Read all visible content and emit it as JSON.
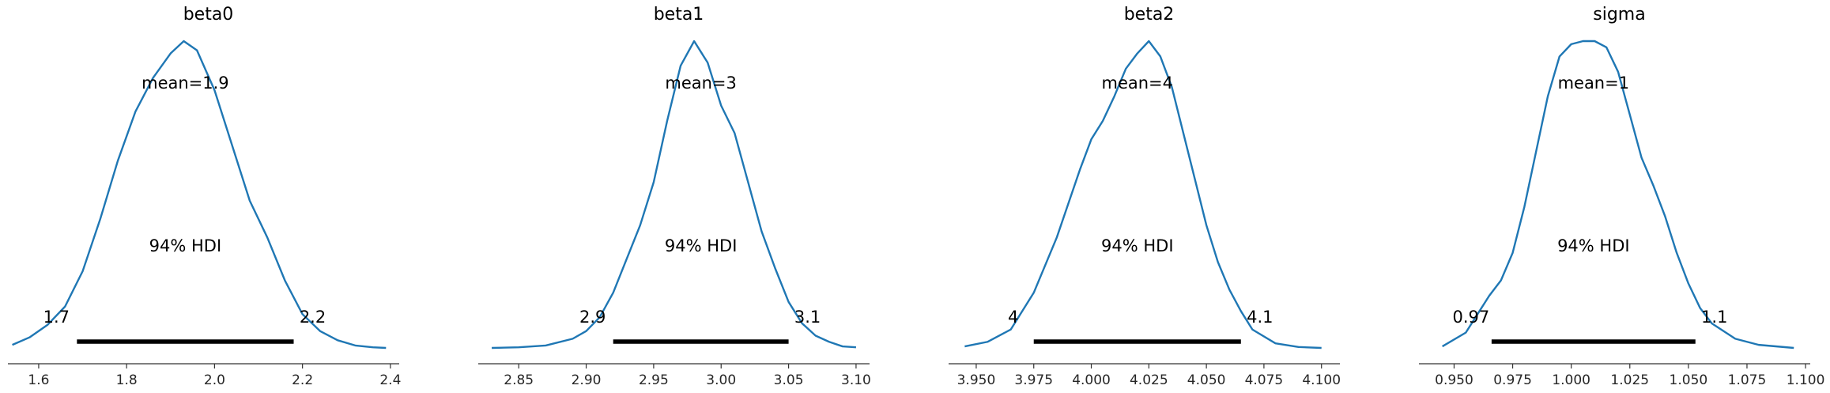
{
  "figure": {
    "hdi_label": "94% HDI",
    "colors": {
      "density": "#1f77b4",
      "hdi": "#000000"
    }
  },
  "chart_data": [
    {
      "type": "line",
      "title": "beta0",
      "mean_label": "mean=1.9",
      "hdi_low_label": "1.7",
      "hdi_high_label": "2.2",
      "hdi": [
        1.687,
        2.18
      ],
      "xlim": [
        1.53,
        2.42
      ],
      "ylim": [
        0,
        1
      ],
      "xticks": [
        1.6,
        1.8,
        2.0,
        2.2,
        2.4
      ],
      "xtick_labels": [
        "1.6",
        "1.8",
        "2.0",
        "2.2",
        "2.4"
      ],
      "x": [
        1.54,
        1.58,
        1.62,
        1.66,
        1.7,
        1.74,
        1.78,
        1.82,
        1.86,
        1.9,
        1.93,
        1.96,
        2.0,
        2.04,
        2.08,
        2.12,
        2.16,
        2.2,
        2.24,
        2.28,
        2.32,
        2.36,
        2.39
      ],
      "y": [
        0.01,
        0.035,
        0.075,
        0.135,
        0.25,
        0.42,
        0.61,
        0.77,
        0.88,
        0.96,
        1.0,
        0.97,
        0.84,
        0.66,
        0.48,
        0.36,
        0.22,
        0.11,
        0.055,
        0.025,
        0.008,
        0.002,
        0.0
      ]
    },
    {
      "type": "line",
      "title": "beta1",
      "mean_label": "mean=3",
      "hdi_low_label": "2.9",
      "hdi_high_label": "3.1",
      "hdi": [
        2.92,
        3.05
      ],
      "xlim": [
        2.82,
        3.11
      ],
      "ylim": [
        0,
        1
      ],
      "xticks": [
        2.85,
        2.9,
        2.95,
        3.0,
        3.05,
        3.1
      ],
      "xtick_labels": [
        "2.85",
        "2.90",
        "2.95",
        "3.00",
        "3.05",
        "3.10"
      ],
      "x": [
        2.83,
        2.85,
        2.87,
        2.89,
        2.9,
        2.91,
        2.92,
        2.93,
        2.94,
        2.95,
        2.96,
        2.97,
        2.98,
        2.99,
        3.0,
        3.01,
        3.02,
        3.03,
        3.04,
        3.05,
        3.06,
        3.07,
        3.08,
        3.09,
        3.1
      ],
      "y": [
        0.0,
        0.002,
        0.008,
        0.03,
        0.055,
        0.1,
        0.18,
        0.29,
        0.4,
        0.54,
        0.74,
        0.92,
        1.0,
        0.93,
        0.79,
        0.7,
        0.54,
        0.38,
        0.26,
        0.15,
        0.08,
        0.04,
        0.02,
        0.005,
        0.002
      ]
    },
    {
      "type": "line",
      "title": "beta2",
      "mean_label": "mean=4",
      "hdi_low_label": "4",
      "hdi_high_label": "4.1",
      "hdi": [
        3.975,
        4.065
      ],
      "xlim": [
        3.938,
        4.108
      ],
      "ylim": [
        0,
        1
      ],
      "xticks": [
        3.95,
        3.975,
        4.0,
        4.025,
        4.05,
        4.075,
        4.1
      ],
      "xtick_labels": [
        "3.950",
        "3.975",
        "4.000",
        "4.025",
        "4.050",
        "4.075",
        "4.100"
      ],
      "x": [
        3.945,
        3.955,
        3.965,
        3.975,
        3.985,
        3.995,
        4.0,
        4.005,
        4.01,
        4.015,
        4.02,
        4.025,
        4.03,
        4.035,
        4.04,
        4.045,
        4.05,
        4.055,
        4.06,
        4.065,
        4.07,
        4.08,
        4.09,
        4.1
      ],
      "y": [
        0.005,
        0.02,
        0.06,
        0.18,
        0.36,
        0.58,
        0.68,
        0.74,
        0.82,
        0.91,
        0.96,
        1.0,
        0.95,
        0.85,
        0.7,
        0.55,
        0.4,
        0.28,
        0.19,
        0.12,
        0.06,
        0.015,
        0.003,
        0.0
      ]
    },
    {
      "type": "line",
      "title": "sigma",
      "mean_label": "mean=1",
      "hdi_low_label": "0.97",
      "hdi_high_label": "1.1",
      "hdi": [
        0.966,
        1.053
      ],
      "xlim": [
        0.935,
        1.102
      ],
      "ylim": [
        0,
        1
      ],
      "xticks": [
        0.95,
        0.975,
        1.0,
        1.025,
        1.05,
        1.075,
        1.1
      ],
      "xtick_labels": [
        "0.950",
        "0.975",
        "1.000",
        "1.025",
        "1.050",
        "1.075",
        "1.100"
      ],
      "x": [
        0.945,
        0.955,
        0.96,
        0.965,
        0.97,
        0.975,
        0.98,
        0.985,
        0.99,
        0.995,
        1.0,
        1.005,
        1.01,
        1.015,
        1.02,
        1.025,
        1.03,
        1.035,
        1.04,
        1.045,
        1.05,
        1.055,
        1.06,
        1.07,
        1.08,
        1.095
      ],
      "y": [
        0.005,
        0.05,
        0.11,
        0.17,
        0.22,
        0.31,
        0.46,
        0.64,
        0.82,
        0.95,
        0.99,
        1.0,
        1.0,
        0.98,
        0.9,
        0.76,
        0.62,
        0.53,
        0.43,
        0.31,
        0.21,
        0.13,
        0.08,
        0.03,
        0.01,
        0.0
      ]
    }
  ]
}
